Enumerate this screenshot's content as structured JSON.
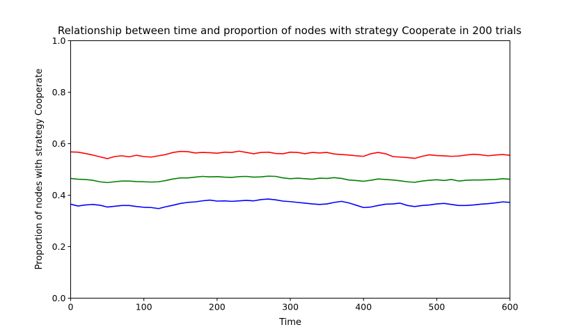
{
  "chart_data": {
    "type": "line",
    "title": "Relationship between time and proportion of nodes with strategy Cooperate in 200 trials",
    "xlabel": "Time",
    "ylabel": "Proportion of nodes with strategy Cooperate",
    "xlim": [
      0,
      600
    ],
    "ylim": [
      0,
      1.0
    ],
    "xticks": [
      0,
      100,
      200,
      300,
      400,
      500,
      600
    ],
    "xtick_labels": [
      "0",
      "100",
      "200",
      "300",
      "400",
      "500",
      "600"
    ],
    "yticks": [
      0,
      0.2,
      0.4,
      0.6,
      0.8,
      1.0
    ],
    "ytick_labels": [
      "0.0",
      "0.2",
      "0.4",
      "0.6",
      "0.8",
      "1.0"
    ],
    "grid": false,
    "x": [
      0,
      10,
      20,
      30,
      40,
      50,
      60,
      70,
      80,
      90,
      100,
      110,
      120,
      130,
      140,
      150,
      160,
      170,
      180,
      190,
      200,
      210,
      220,
      230,
      240,
      250,
      260,
      270,
      280,
      290,
      300,
      310,
      320,
      330,
      340,
      350,
      360,
      370,
      380,
      390,
      400,
      410,
      420,
      430,
      440,
      450,
      460,
      470,
      480,
      490,
      500,
      510,
      520,
      530,
      540,
      550,
      560,
      570,
      580,
      590,
      600
    ],
    "series": [
      {
        "color": "#ff0000",
        "values": [
          0.568,
          0.567,
          0.562,
          0.556,
          0.549,
          0.542,
          0.55,
          0.553,
          0.549,
          0.555,
          0.55,
          0.548,
          0.553,
          0.558,
          0.566,
          0.57,
          0.569,
          0.564,
          0.566,
          0.565,
          0.563,
          0.567,
          0.566,
          0.571,
          0.566,
          0.561,
          0.566,
          0.567,
          0.562,
          0.561,
          0.567,
          0.566,
          0.561,
          0.566,
          0.564,
          0.566,
          0.56,
          0.558,
          0.556,
          0.553,
          0.551,
          0.561,
          0.566,
          0.561,
          0.55,
          0.548,
          0.546,
          0.543,
          0.551,
          0.557,
          0.554,
          0.553,
          0.551,
          0.552,
          0.556,
          0.559,
          0.557,
          0.553,
          0.556,
          0.558,
          0.555
        ]
      },
      {
        "color": "#008000",
        "values": [
          0.465,
          0.462,
          0.461,
          0.458,
          0.452,
          0.449,
          0.452,
          0.455,
          0.455,
          0.453,
          0.452,
          0.451,
          0.452,
          0.457,
          0.463,
          0.467,
          0.467,
          0.47,
          0.473,
          0.471,
          0.472,
          0.47,
          0.469,
          0.472,
          0.473,
          0.47,
          0.471,
          0.474,
          0.473,
          0.467,
          0.464,
          0.466,
          0.464,
          0.462,
          0.466,
          0.465,
          0.468,
          0.465,
          0.459,
          0.457,
          0.454,
          0.458,
          0.463,
          0.461,
          0.459,
          0.456,
          0.452,
          0.45,
          0.455,
          0.458,
          0.46,
          0.457,
          0.461,
          0.455,
          0.458,
          0.459,
          0.459,
          0.46,
          0.461,
          0.464,
          0.462
        ]
      },
      {
        "color": "#0000ff",
        "values": [
          0.365,
          0.358,
          0.362,
          0.364,
          0.361,
          0.354,
          0.357,
          0.36,
          0.36,
          0.356,
          0.353,
          0.352,
          0.348,
          0.355,
          0.361,
          0.368,
          0.372,
          0.374,
          0.378,
          0.381,
          0.377,
          0.378,
          0.376,
          0.378,
          0.38,
          0.378,
          0.383,
          0.385,
          0.382,
          0.377,
          0.375,
          0.372,
          0.369,
          0.366,
          0.364,
          0.366,
          0.372,
          0.376,
          0.37,
          0.361,
          0.352,
          0.354,
          0.36,
          0.365,
          0.366,
          0.369,
          0.36,
          0.356,
          0.36,
          0.362,
          0.366,
          0.368,
          0.364,
          0.36,
          0.36,
          0.362,
          0.365,
          0.367,
          0.37,
          0.374,
          0.372
        ]
      }
    ]
  }
}
